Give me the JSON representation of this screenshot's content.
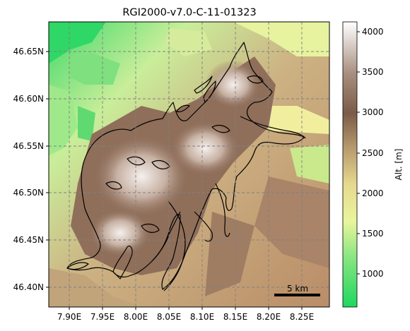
{
  "title": "RGI2000-v7.0-C-11-01323",
  "map": {
    "x_ticks": [
      "7.90E",
      "7.95E",
      "8.00E",
      "8.05E",
      "8.10E",
      "8.15E",
      "8.20E",
      "8.25E"
    ],
    "y_ticks": [
      "46.65N",
      "46.60N",
      "46.55N",
      "46.50N",
      "46.45N",
      "46.40N"
    ],
    "grid": "dashed gray",
    "outline_color": "#000000"
  },
  "colorbar": {
    "label": "Alt. [m]",
    "ticks": [
      "4000",
      "3500",
      "3000",
      "2500",
      "2000",
      "1500",
      "1000"
    ],
    "range": [
      580,
      4100
    ],
    "colormap": [
      "#1ed760",
      "#9be88a",
      "#f7f7a1",
      "#d6c58a",
      "#a98c66",
      "#7d5d4a",
      "#b59c8d",
      "#ffffff"
    ]
  },
  "scale_bar": {
    "label": "5 km"
  }
}
